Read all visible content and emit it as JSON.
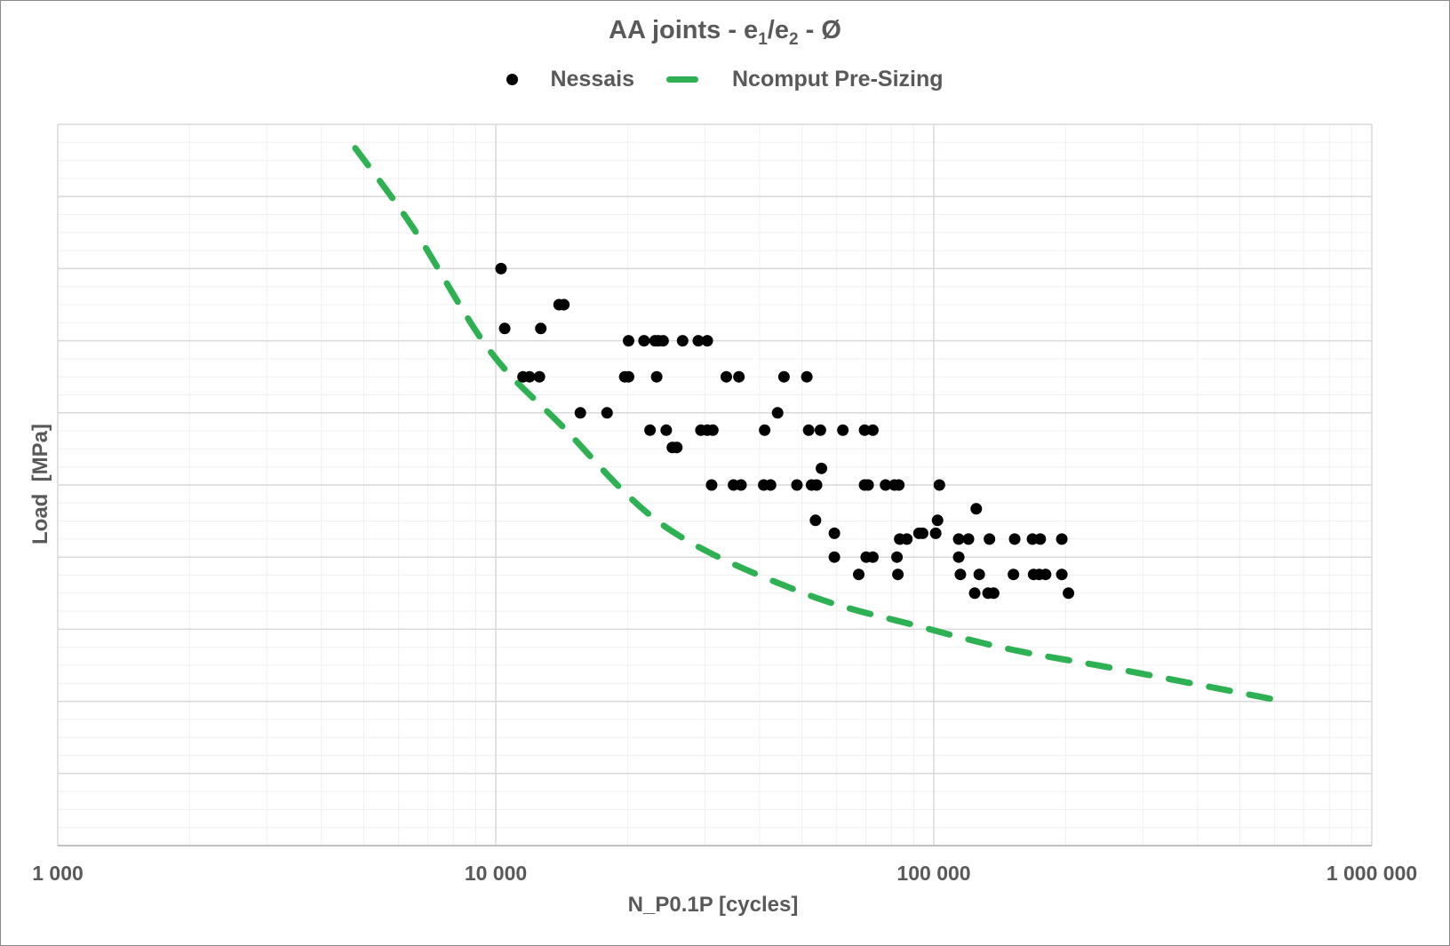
{
  "title": {
    "main": "AA joints - e",
    "sub1": "1",
    "mid": "/e",
    "sub2": "2",
    "tail": " - Ø"
  },
  "legend": [
    {
      "label": "Nessais",
      "marker": "dot",
      "color": "#000000"
    },
    {
      "label": "Ncomput Pre-Sizing",
      "marker": "dash",
      "color": "#2db152"
    }
  ],
  "axes": {
    "xlabel": "N_P0.1P [cycles]",
    "ylabel": "Load  [MPa]",
    "xticks": [
      "1 000",
      "10 000",
      "100 000",
      "1 000 000"
    ]
  },
  "colors": {
    "grid_major": "#d9d9d9",
    "grid_minor": "#f0f0f0",
    "scatter": "#000000",
    "curve": "#2db152",
    "text": "#595959"
  },
  "chart_data": {
    "type": "scatter",
    "title": "AA joints - e1/e2 - Ø",
    "xlabel": "N_P0.1P [cycles]",
    "ylabel": "Load [MPa]",
    "xscale": "log",
    "xlim": [
      1000,
      1000000
    ],
    "xticks": [
      1000,
      10000,
      100000,
      1000000
    ],
    "xtick_labels": [
      "1 000",
      "10 000",
      "100 000",
      "1 000 000"
    ],
    "ylim": [
      0,
      10
    ],
    "y_note": "Y tick labels hidden in figure; y expressed in major-gridline units (10 equal divisions, 4 minor subdivisions each)",
    "grid": true,
    "legend_position": "top",
    "series": [
      {
        "name": "Nessais",
        "type": "scatter",
        "color": "#000000",
        "points": [
          [
            10280,
            8.0
          ],
          [
            13950,
            7.5
          ],
          [
            14300,
            7.5
          ],
          [
            10480,
            7.17
          ],
          [
            12670,
            7.17
          ],
          [
            20100,
            7.0
          ],
          [
            21800,
            7.0
          ],
          [
            23100,
            7.0
          ],
          [
            23500,
            7.0
          ],
          [
            24100,
            7.0
          ],
          [
            26700,
            7.0
          ],
          [
            29000,
            7.0
          ],
          [
            30400,
            7.0
          ],
          [
            11540,
            6.5
          ],
          [
            11940,
            6.5
          ],
          [
            12580,
            6.5
          ],
          [
            19700,
            6.5
          ],
          [
            20100,
            6.5
          ],
          [
            23300,
            6.5
          ],
          [
            33600,
            6.5
          ],
          [
            35900,
            6.5
          ],
          [
            45500,
            6.5
          ],
          [
            51300,
            6.5
          ],
          [
            15600,
            6.0
          ],
          [
            17950,
            6.0
          ],
          [
            44000,
            6.0
          ],
          [
            22500,
            5.76
          ],
          [
            24500,
            5.76
          ],
          [
            29400,
            5.76
          ],
          [
            30400,
            5.76
          ],
          [
            31300,
            5.76
          ],
          [
            41100,
            5.76
          ],
          [
            51800,
            5.76
          ],
          [
            55100,
            5.76
          ],
          [
            62000,
            5.76
          ],
          [
            69500,
            5.76
          ],
          [
            72600,
            5.76
          ],
          [
            25300,
            5.52
          ],
          [
            25900,
            5.52
          ],
          [
            55400,
            5.23
          ],
          [
            31100,
            5.0
          ],
          [
            34900,
            5.0
          ],
          [
            36300,
            5.0
          ],
          [
            40900,
            5.0
          ],
          [
            42400,
            5.0
          ],
          [
            48700,
            5.0
          ],
          [
            52600,
            5.0
          ],
          [
            54000,
            5.0
          ],
          [
            69500,
            5.0
          ],
          [
            70800,
            5.0
          ],
          [
            77600,
            5.0
          ],
          [
            81300,
            5.0
          ],
          [
            83200,
            5.0
          ],
          [
            103000,
            5.0
          ],
          [
            125000,
            4.67
          ],
          [
            53700,
            4.51
          ],
          [
            102000,
            4.51
          ],
          [
            59300,
            4.33
          ],
          [
            92500,
            4.33
          ],
          [
            94300,
            4.33
          ],
          [
            101000,
            4.33
          ],
          [
            83600,
            4.25
          ],
          [
            86800,
            4.25
          ],
          [
            114000,
            4.25
          ],
          [
            120000,
            4.25
          ],
          [
            134000,
            4.25
          ],
          [
            153000,
            4.25
          ],
          [
            168000,
            4.25
          ],
          [
            175000,
            4.25
          ],
          [
            196000,
            4.25
          ],
          [
            59300,
            4.0
          ],
          [
            70100,
            4.0
          ],
          [
            72600,
            4.0
          ],
          [
            82400,
            4.0
          ],
          [
            114000,
            4.0
          ],
          [
            67400,
            3.76
          ],
          [
            82800,
            3.76
          ],
          [
            115000,
            3.76
          ],
          [
            127000,
            3.76
          ],
          [
            152000,
            3.76
          ],
          [
            169000,
            3.76
          ],
          [
            174000,
            3.76
          ],
          [
            180000,
            3.76
          ],
          [
            196000,
            3.76
          ],
          [
            124000,
            3.5
          ],
          [
            133000,
            3.5
          ],
          [
            137000,
            3.5
          ],
          [
            203000,
            3.5
          ]
        ]
      },
      {
        "name": "Ncomput Pre-Sizing",
        "type": "line",
        "style": "dashed",
        "color": "#2db152",
        "points": [
          [
            4780,
            9.67
          ],
          [
            6500,
            8.55
          ],
          [
            9640,
            6.88
          ],
          [
            14000,
            5.85
          ],
          [
            24400,
            4.42
          ],
          [
            50500,
            3.5
          ],
          [
            92600,
            3.04
          ],
          [
            150000,
            2.72
          ],
          [
            262000,
            2.45
          ],
          [
            630000,
            2.0
          ]
        ]
      }
    ]
  }
}
